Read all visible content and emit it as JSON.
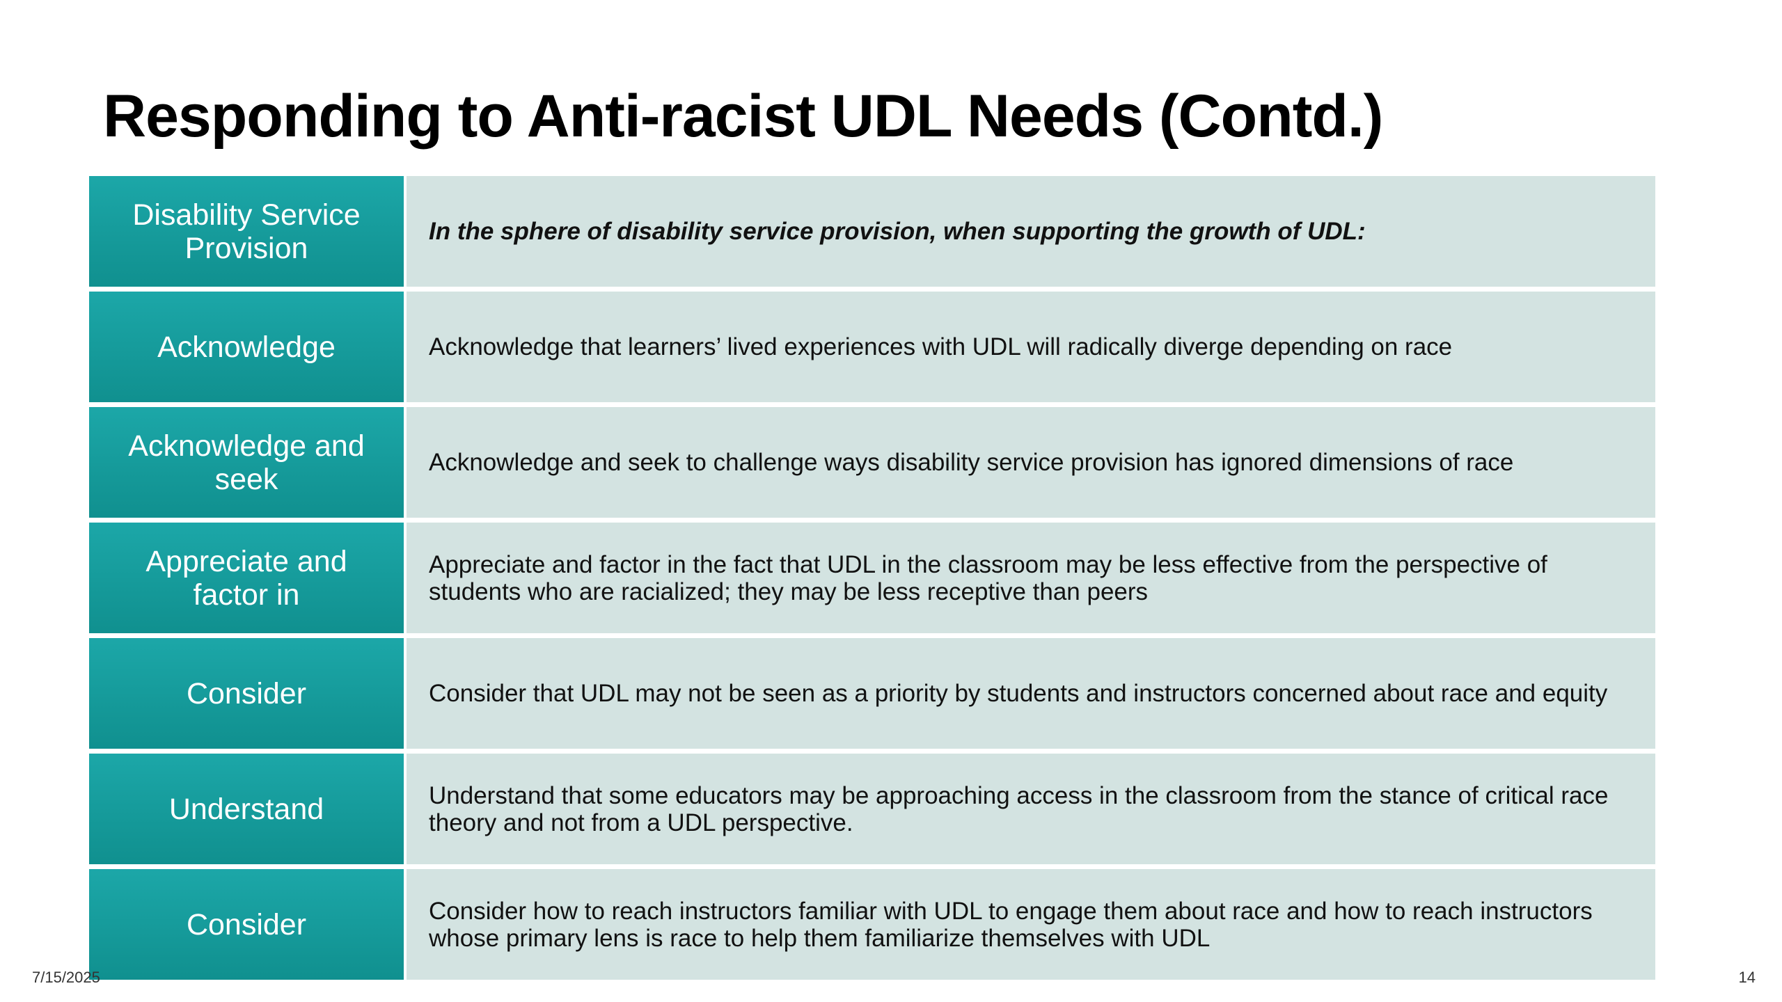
{
  "slide": {
    "title": "Responding to Anti-racist UDL Needs (Contd.)",
    "date": "7/15/2025",
    "page_number": "14"
  },
  "table": {
    "rows": [
      {
        "label": "Disability Service Provision",
        "text": "In the sphere of disability service provision, when supporting the growth of UDL:"
      },
      {
        "label": "Acknowledge",
        "text": "Acknowledge that learners’ lived experiences with UDL will radically diverge depending on race"
      },
      {
        "label": "Acknowledge and seek",
        "text": "Acknowledge and seek to challenge ways disability service provision has ignored dimensions of race"
      },
      {
        "label": "Appreciate and factor in",
        "text": "Appreciate and factor in the fact that UDL in the classroom may be less effective from the perspective of students who are racialized; they may be less receptive than peers"
      },
      {
        "label": "Consider",
        "text": "Consider that UDL may not be seen as a priority by students and instructors concerned about race and equity"
      },
      {
        "label": "Understand",
        "text": "Understand that some educators may be approaching access in the classroom from the stance of critical race theory and not from a UDL perspective."
      },
      {
        "label": "Consider",
        "text": "Consider how to reach instructors familiar with UDL to engage them about race and how to reach instructors whose primary lens is race to help them familiarize themselves with UDL"
      }
    ]
  },
  "colors": {
    "label_background": "#16a0a0",
    "content_background": "#d3e3e1",
    "label_text": "#ffffff"
  }
}
